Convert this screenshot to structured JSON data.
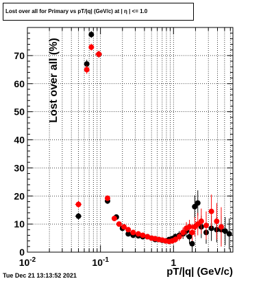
{
  "chart_data": {
    "type": "scatter",
    "title": "Lost over all for Primary vs pT/|q| (GeV/c) at | η | <= 1.0",
    "xlabel": "pT/|q| (GeV/c)",
    "ylabel": "Lost over all (%)",
    "xscale": "log",
    "xlim": [
      0.01,
      6.5
    ],
    "ylim": [
      0,
      80
    ],
    "grid": true,
    "x_tick_labels": [
      "10^-2",
      "10^-1",
      "1"
    ],
    "y_tick_labels": [
      "0",
      "10",
      "20",
      "30",
      "40",
      "50",
      "60",
      "70"
    ],
    "colors": {
      "black": "#000000",
      "red": "#ff0000"
    },
    "series": [
      {
        "color": "black",
        "points": [
          {
            "x": 0.05,
            "y": 12.8,
            "xerr": 0.005,
            "yerr": 1.2
          },
          {
            "x": 0.065,
            "y": 67.0,
            "xerr": 0.005,
            "yerr": 1.5
          },
          {
            "x": 0.075,
            "y": 77.5,
            "xerr": 0.005,
            "yerr": 1.2
          },
          {
            "x": 0.095,
            "y": 70.5,
            "xerr": 0.01,
            "yerr": 1.2
          },
          {
            "x": 0.125,
            "y": 18.2,
            "xerr": 0.01,
            "yerr": 1.0
          },
          {
            "x": 0.165,
            "y": 12.5,
            "xerr": 0.012,
            "yerr": 0.8
          },
          {
            "x": 0.2,
            "y": 8.5,
            "xerr": 0.015,
            "yerr": 0.7
          },
          {
            "x": 0.24,
            "y": 6.5,
            "xerr": 0.015,
            "yerr": 0.6
          },
          {
            "x": 0.28,
            "y": 6.0,
            "xerr": 0.015,
            "yerr": 0.6
          },
          {
            "x": 0.33,
            "y": 5.8,
            "xerr": 0.02,
            "yerr": 0.6
          },
          {
            "x": 0.38,
            "y": 5.5,
            "xerr": 0.02,
            "yerr": 0.6
          },
          {
            "x": 0.44,
            "y": 5.5,
            "xerr": 0.02,
            "yerr": 0.6
          },
          {
            "x": 0.5,
            "y": 5.0,
            "xerr": 0.025,
            "yerr": 0.6
          },
          {
            "x": 0.56,
            "y": 4.5,
            "xerr": 0.025,
            "yerr": 0.6
          },
          {
            "x": 0.63,
            "y": 4.5,
            "xerr": 0.03,
            "yerr": 0.7
          },
          {
            "x": 0.7,
            "y": 4.2,
            "xerr": 0.03,
            "yerr": 0.7
          },
          {
            "x": 0.78,
            "y": 4.0,
            "xerr": 0.035,
            "yerr": 0.8
          },
          {
            "x": 0.87,
            "y": 4.5,
            "xerr": 0.04,
            "yerr": 0.9
          },
          {
            "x": 0.96,
            "y": 4.8,
            "xerr": 0.04,
            "yerr": 1.0
          },
          {
            "x": 1.06,
            "y": 5.5,
            "xerr": 0.05,
            "yerr": 1.2
          },
          {
            "x": 1.2,
            "y": 6.0,
            "xerr": 0.05,
            "yerr": 1.5
          },
          {
            "x": 1.35,
            "y": 6.5,
            "xerr": 0.06,
            "yerr": 1.8
          },
          {
            "x": 1.5,
            "y": 7.5,
            "xerr": 0.07,
            "yerr": 2.2
          },
          {
            "x": 1.65,
            "y": 5.5,
            "xerr": 0.07,
            "yerr": 2.5
          },
          {
            "x": 1.8,
            "y": 3.0,
            "xerr": 0.08,
            "yerr": 3.0
          },
          {
            "x": 1.95,
            "y": 16.2,
            "xerr": 0.08,
            "yerr": 4.0
          },
          {
            "x": 2.15,
            "y": 17.5,
            "xerr": 0.09,
            "yerr": 4.5
          },
          {
            "x": 2.4,
            "y": 9.0,
            "xerr": 0.1,
            "yerr": 4.0
          },
          {
            "x": 2.8,
            "y": 7.0,
            "xerr": 0.15,
            "yerr": 4.0
          },
          {
            "x": 3.3,
            "y": 8.5,
            "xerr": 0.2,
            "yerr": 4.5
          },
          {
            "x": 3.9,
            "y": 8.0,
            "xerr": 0.25,
            "yerr": 4.5
          },
          {
            "x": 4.5,
            "y": 8.0,
            "xerr": 0.3,
            "yerr": 5.0
          },
          {
            "x": 5.1,
            "y": 7.5,
            "xerr": 0.3,
            "yerr": 5.0
          },
          {
            "x": 5.8,
            "y": 6.5,
            "xerr": 0.35,
            "yerr": 5.5
          }
        ]
      },
      {
        "color": "red",
        "points": [
          {
            "x": 0.05,
            "y": 17.0,
            "xerr": 0.005,
            "yerr": 1.2
          },
          {
            "x": 0.065,
            "y": 65.0,
            "xerr": 0.005,
            "yerr": 1.5
          },
          {
            "x": 0.075,
            "y": 73.0,
            "xerr": 0.005,
            "yerr": 1.2
          },
          {
            "x": 0.095,
            "y": 70.5,
            "xerr": 0.01,
            "yerr": 1.2
          },
          {
            "x": 0.125,
            "y": 19.2,
            "xerr": 0.01,
            "yerr": 1.0
          },
          {
            "x": 0.155,
            "y": 12.0,
            "xerr": 0.01,
            "yerr": 0.8
          },
          {
            "x": 0.18,
            "y": 10.0,
            "xerr": 0.012,
            "yerr": 0.8
          },
          {
            "x": 0.21,
            "y": 9.0,
            "xerr": 0.015,
            "yerr": 0.7
          },
          {
            "x": 0.24,
            "y": 8.0,
            "xerr": 0.015,
            "yerr": 0.7
          },
          {
            "x": 0.28,
            "y": 7.0,
            "xerr": 0.015,
            "yerr": 0.6
          },
          {
            "x": 0.33,
            "y": 6.5,
            "xerr": 0.02,
            "yerr": 0.6
          },
          {
            "x": 0.38,
            "y": 6.0,
            "xerr": 0.02,
            "yerr": 0.6
          },
          {
            "x": 0.44,
            "y": 5.5,
            "xerr": 0.02,
            "yerr": 0.6
          },
          {
            "x": 0.5,
            "y": 5.0,
            "xerr": 0.025,
            "yerr": 0.6
          },
          {
            "x": 0.56,
            "y": 4.8,
            "xerr": 0.025,
            "yerr": 0.6
          },
          {
            "x": 0.63,
            "y": 4.5,
            "xerr": 0.03,
            "yerr": 0.7
          },
          {
            "x": 0.7,
            "y": 4.3,
            "xerr": 0.03,
            "yerr": 0.7
          },
          {
            "x": 0.78,
            "y": 4.0,
            "xerr": 0.035,
            "yerr": 0.8
          },
          {
            "x": 0.87,
            "y": 3.8,
            "xerr": 0.04,
            "yerr": 0.9
          },
          {
            "x": 0.96,
            "y": 4.0,
            "xerr": 0.04,
            "yerr": 1.0
          },
          {
            "x": 1.06,
            "y": 4.5,
            "xerr": 0.05,
            "yerr": 1.2
          },
          {
            "x": 1.2,
            "y": 5.5,
            "xerr": 0.05,
            "yerr": 1.5
          },
          {
            "x": 1.35,
            "y": 7.0,
            "xerr": 0.06,
            "yerr": 1.8
          },
          {
            "x": 1.5,
            "y": 8.5,
            "xerr": 0.07,
            "yerr": 2.2
          },
          {
            "x": 1.65,
            "y": 9.0,
            "xerr": 0.07,
            "yerr": 2.5
          },
          {
            "x": 1.8,
            "y": 7.0,
            "xerr": 0.08,
            "yerr": 3.0
          },
          {
            "x": 1.95,
            "y": 9.0,
            "xerr": 0.08,
            "yerr": 3.5
          },
          {
            "x": 2.15,
            "y": 10.0,
            "xerr": 0.09,
            "yerr": 4.0
          },
          {
            "x": 2.4,
            "y": 11.0,
            "xerr": 0.1,
            "yerr": 4.5
          },
          {
            "x": 2.8,
            "y": 9.5,
            "xerr": 0.15,
            "yerr": 5.0
          },
          {
            "x": 3.3,
            "y": 14.5,
            "xerr": 0.2,
            "yerr": 6.0
          },
          {
            "x": 3.9,
            "y": 11.0,
            "xerr": 0.25,
            "yerr": 6.5
          },
          {
            "x": 4.5,
            "y": 9.0,
            "xerr": 0.3,
            "yerr": 7.0
          }
        ]
      }
    ]
  },
  "timestamp": "Tue Dec 21 13:13:52 2021"
}
